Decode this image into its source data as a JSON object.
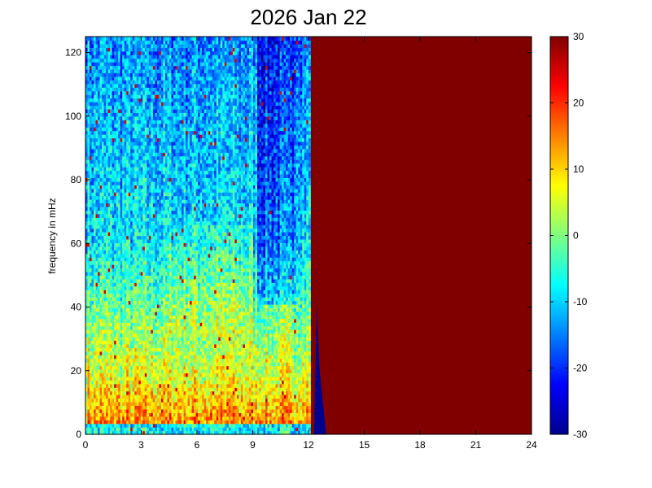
{
  "chart_data": {
    "type": "heatmap",
    "title": "2026 Jan 22",
    "xlabel": "",
    "ylabel": "frequency in mHz",
    "x_ticks": [
      "0",
      "3",
      "6",
      "9",
      "12",
      "15",
      "18",
      "21",
      "24"
    ],
    "xlim": [
      0,
      24
    ],
    "y_ticks": [
      "0",
      "20",
      "40",
      "60",
      "80",
      "100",
      "120"
    ],
    "ylim": [
      0,
      125
    ],
    "colorbar": {
      "colormap": "jet",
      "clim": [
        -30,
        30
      ],
      "ticks": [
        "-30",
        "-20",
        "-10",
        "0",
        "10",
        "20",
        "30"
      ]
    },
    "regions": [
      {
        "x_range": [
          0,
          12.1
        ],
        "description": "noise spectrogram: high power (~10-25) below 15 mHz, mid (~0-5) 15-60 mHz, low (~-10 to -20) above 60 mHz, darker band near 9.5-11"
      },
      {
        "x_range": [
          12.1,
          24
        ],
        "value": 30,
        "description": "saturated (no data)"
      }
    ],
    "grid": false
  }
}
